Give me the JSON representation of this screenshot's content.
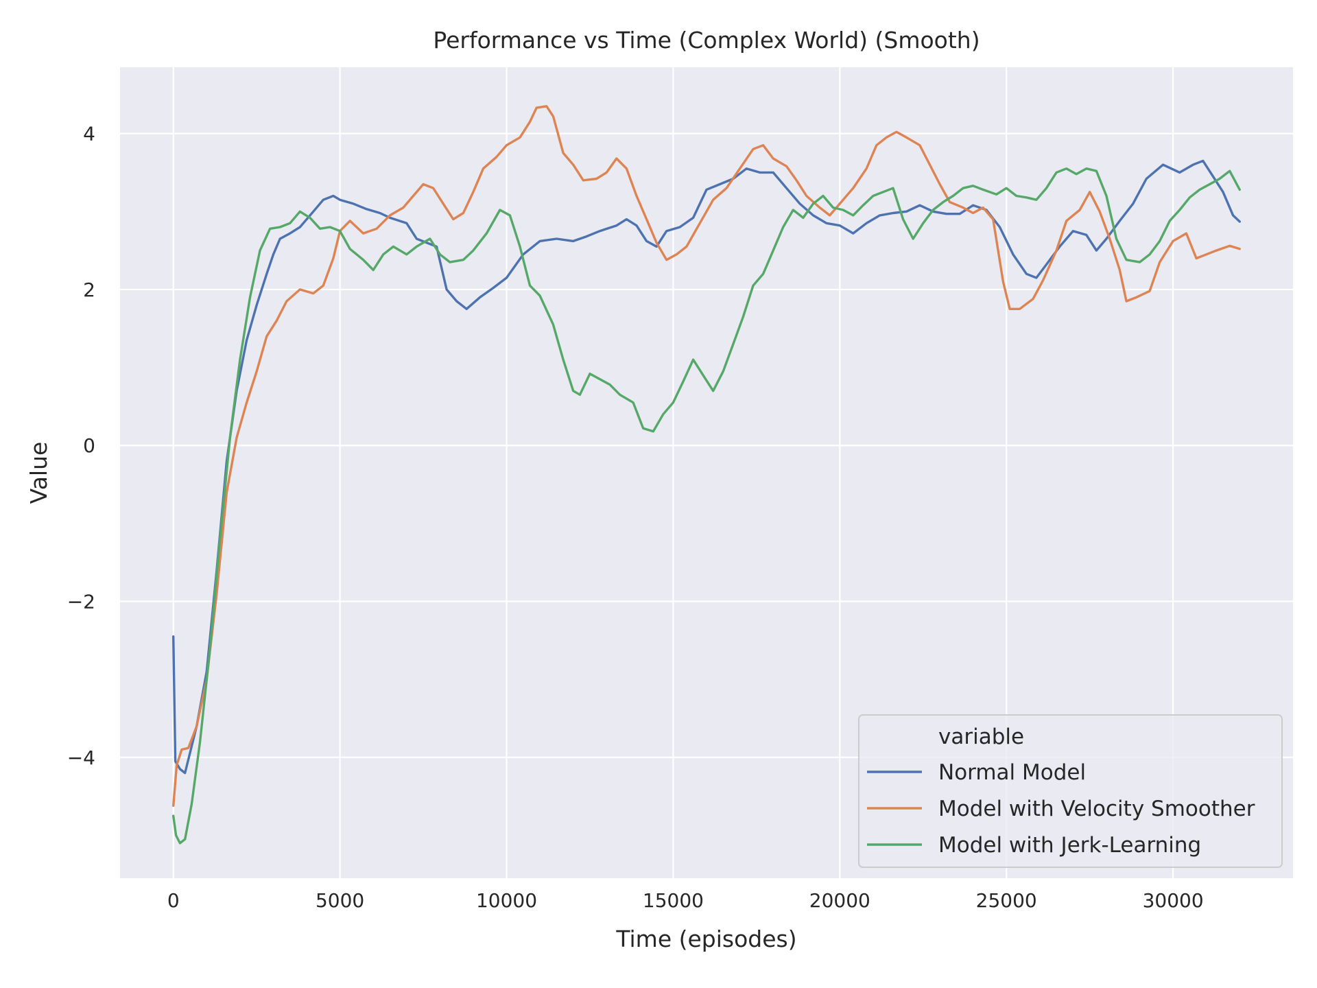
{
  "chart_data": {
    "type": "line",
    "title": "Performance vs Time (Complex World) (Smooth)",
    "xlabel": "Time (episodes)",
    "ylabel": "Value",
    "xlim": [
      -1600,
      33600
    ],
    "ylim": [
      -5.55,
      4.85
    ],
    "xticks": [
      0,
      5000,
      10000,
      15000,
      20000,
      25000,
      30000
    ],
    "yticks": [
      -4,
      -2,
      0,
      2,
      4
    ],
    "x_tick_labels": [
      "0",
      "5000",
      "10000",
      "15000",
      "20000",
      "25000",
      "30000"
    ],
    "y_tick_labels": [
      "−4",
      "−2",
      "0",
      "2",
      "4"
    ],
    "grid": true,
    "legend": {
      "title": "variable",
      "placement": "lower-right"
    },
    "series": [
      {
        "name": "Normal Model",
        "color": "#4c72b0",
        "points": [
          [
            0,
            -2.45
          ],
          [
            60,
            -4.05
          ],
          [
            200,
            -4.15
          ],
          [
            350,
            -4.2
          ],
          [
            700,
            -3.6
          ],
          [
            1000,
            -2.9
          ],
          [
            1300,
            -1.6
          ],
          [
            1600,
            -0.2
          ],
          [
            1900,
            0.7
          ],
          [
            2200,
            1.35
          ],
          [
            2500,
            1.8
          ],
          [
            2800,
            2.2
          ],
          [
            3000,
            2.45
          ],
          [
            3200,
            2.65
          ],
          [
            3500,
            2.72
          ],
          [
            3800,
            2.8
          ],
          [
            4200,
            3.0
          ],
          [
            4500,
            3.15
          ],
          [
            4800,
            3.2
          ],
          [
            5000,
            3.15
          ],
          [
            5400,
            3.1
          ],
          [
            5800,
            3.03
          ],
          [
            6200,
            2.98
          ],
          [
            6500,
            2.92
          ],
          [
            7000,
            2.85
          ],
          [
            7300,
            2.65
          ],
          [
            7600,
            2.6
          ],
          [
            7900,
            2.55
          ],
          [
            8200,
            2.0
          ],
          [
            8500,
            1.85
          ],
          [
            8800,
            1.75
          ],
          [
            9200,
            1.9
          ],
          [
            9600,
            2.02
          ],
          [
            10000,
            2.15
          ],
          [
            10500,
            2.45
          ],
          [
            11000,
            2.62
          ],
          [
            11500,
            2.65
          ],
          [
            12000,
            2.62
          ],
          [
            12400,
            2.68
          ],
          [
            12800,
            2.75
          ],
          [
            13300,
            2.82
          ],
          [
            13600,
            2.9
          ],
          [
            13900,
            2.82
          ],
          [
            14200,
            2.62
          ],
          [
            14500,
            2.55
          ],
          [
            14800,
            2.75
          ],
          [
            15200,
            2.8
          ],
          [
            15600,
            2.92
          ],
          [
            16000,
            3.28
          ],
          [
            16400,
            3.35
          ],
          [
            16800,
            3.42
          ],
          [
            17200,
            3.55
          ],
          [
            17600,
            3.5
          ],
          [
            18000,
            3.5
          ],
          [
            18400,
            3.3
          ],
          [
            18800,
            3.1
          ],
          [
            19200,
            2.95
          ],
          [
            19600,
            2.85
          ],
          [
            20000,
            2.82
          ],
          [
            20400,
            2.72
          ],
          [
            20800,
            2.85
          ],
          [
            21200,
            2.95
          ],
          [
            21600,
            2.98
          ],
          [
            22000,
            3.0
          ],
          [
            22400,
            3.08
          ],
          [
            22800,
            3.0
          ],
          [
            23200,
            2.97
          ],
          [
            23600,
            2.97
          ],
          [
            24000,
            3.08
          ],
          [
            24400,
            3.02
          ],
          [
            24800,
            2.8
          ],
          [
            25200,
            2.45
          ],
          [
            25600,
            2.2
          ],
          [
            25900,
            2.15
          ],
          [
            26200,
            2.32
          ],
          [
            26600,
            2.55
          ],
          [
            27000,
            2.75
          ],
          [
            27400,
            2.7
          ],
          [
            27700,
            2.5
          ],
          [
            28000,
            2.65
          ],
          [
            28400,
            2.88
          ],
          [
            28800,
            3.1
          ],
          [
            29200,
            3.42
          ],
          [
            29700,
            3.6
          ],
          [
            30200,
            3.5
          ],
          [
            30600,
            3.6
          ],
          [
            30900,
            3.65
          ],
          [
            31200,
            3.45
          ],
          [
            31500,
            3.25
          ],
          [
            31800,
            2.95
          ],
          [
            32000,
            2.87
          ]
        ]
      },
      {
        "name": "Model with Velocity Smoother",
        "color": "#dd8452",
        "points": [
          [
            0,
            -4.62
          ],
          [
            100,
            -4.1
          ],
          [
            250,
            -3.9
          ],
          [
            450,
            -3.88
          ],
          [
            700,
            -3.6
          ],
          [
            1000,
            -3.0
          ],
          [
            1300,
            -1.9
          ],
          [
            1600,
            -0.6
          ],
          [
            1900,
            0.1
          ],
          [
            2200,
            0.55
          ],
          [
            2500,
            0.95
          ],
          [
            2800,
            1.4
          ],
          [
            3100,
            1.6
          ],
          [
            3400,
            1.85
          ],
          [
            3800,
            2.0
          ],
          [
            4200,
            1.95
          ],
          [
            4500,
            2.05
          ],
          [
            4800,
            2.4
          ],
          [
            5000,
            2.75
          ],
          [
            5300,
            2.88
          ],
          [
            5700,
            2.72
          ],
          [
            6100,
            2.78
          ],
          [
            6500,
            2.95
          ],
          [
            6900,
            3.05
          ],
          [
            7200,
            3.2
          ],
          [
            7500,
            3.35
          ],
          [
            7800,
            3.3
          ],
          [
            8100,
            3.1
          ],
          [
            8400,
            2.9
          ],
          [
            8700,
            2.98
          ],
          [
            9000,
            3.25
          ],
          [
            9300,
            3.55
          ],
          [
            9700,
            3.7
          ],
          [
            10000,
            3.85
          ],
          [
            10400,
            3.95
          ],
          [
            10700,
            4.15
          ],
          [
            10900,
            4.33
          ],
          [
            11200,
            4.35
          ],
          [
            11400,
            4.22
          ],
          [
            11700,
            3.75
          ],
          [
            12000,
            3.6
          ],
          [
            12300,
            3.4
          ],
          [
            12700,
            3.42
          ],
          [
            13000,
            3.5
          ],
          [
            13300,
            3.68
          ],
          [
            13600,
            3.55
          ],
          [
            13900,
            3.2
          ],
          [
            14200,
            2.9
          ],
          [
            14500,
            2.6
          ],
          [
            14800,
            2.38
          ],
          [
            15100,
            2.45
          ],
          [
            15400,
            2.55
          ],
          [
            15800,
            2.85
          ],
          [
            16200,
            3.15
          ],
          [
            16600,
            3.3
          ],
          [
            17000,
            3.55
          ],
          [
            17400,
            3.8
          ],
          [
            17700,
            3.85
          ],
          [
            18000,
            3.68
          ],
          [
            18400,
            3.58
          ],
          [
            18700,
            3.4
          ],
          [
            19000,
            3.2
          ],
          [
            19400,
            3.05
          ],
          [
            19700,
            2.95
          ],
          [
            20000,
            3.1
          ],
          [
            20400,
            3.3
          ],
          [
            20800,
            3.55
          ],
          [
            21100,
            3.85
          ],
          [
            21400,
            3.95
          ],
          [
            21700,
            4.02
          ],
          [
            22000,
            3.95
          ],
          [
            22400,
            3.85
          ],
          [
            22700,
            3.6
          ],
          [
            23000,
            3.35
          ],
          [
            23300,
            3.12
          ],
          [
            23700,
            3.05
          ],
          [
            24000,
            2.98
          ],
          [
            24300,
            3.05
          ],
          [
            24600,
            2.9
          ],
          [
            24900,
            2.1
          ],
          [
            25100,
            1.75
          ],
          [
            25400,
            1.75
          ],
          [
            25800,
            1.88
          ],
          [
            26100,
            2.12
          ],
          [
            26500,
            2.5
          ],
          [
            26800,
            2.88
          ],
          [
            27200,
            3.02
          ],
          [
            27500,
            3.25
          ],
          [
            27800,
            3.0
          ],
          [
            28100,
            2.65
          ],
          [
            28400,
            2.25
          ],
          [
            28600,
            1.85
          ],
          [
            28900,
            1.9
          ],
          [
            29300,
            1.98
          ],
          [
            29600,
            2.35
          ],
          [
            30000,
            2.62
          ],
          [
            30400,
            2.72
          ],
          [
            30700,
            2.4
          ],
          [
            31000,
            2.45
          ],
          [
            31300,
            2.5
          ],
          [
            31700,
            2.56
          ],
          [
            32000,
            2.52
          ]
        ]
      },
      {
        "name": "Model with Jerk-Learning",
        "color": "#55a868",
        "points": [
          [
            0,
            -4.75
          ],
          [
            80,
            -5.0
          ],
          [
            200,
            -5.1
          ],
          [
            350,
            -5.05
          ],
          [
            550,
            -4.6
          ],
          [
            800,
            -3.8
          ],
          [
            1100,
            -2.6
          ],
          [
            1400,
            -1.2
          ],
          [
            1700,
            0.1
          ],
          [
            2000,
            1.1
          ],
          [
            2300,
            1.9
          ],
          [
            2600,
            2.5
          ],
          [
            2900,
            2.78
          ],
          [
            3200,
            2.8
          ],
          [
            3500,
            2.85
          ],
          [
            3800,
            3.0
          ],
          [
            4100,
            2.92
          ],
          [
            4400,
            2.78
          ],
          [
            4700,
            2.8
          ],
          [
            5000,
            2.75
          ],
          [
            5300,
            2.52
          ],
          [
            5700,
            2.38
          ],
          [
            6000,
            2.25
          ],
          [
            6300,
            2.45
          ],
          [
            6600,
            2.55
          ],
          [
            7000,
            2.45
          ],
          [
            7300,
            2.55
          ],
          [
            7700,
            2.65
          ],
          [
            8000,
            2.45
          ],
          [
            8300,
            2.35
          ],
          [
            8700,
            2.38
          ],
          [
            9000,
            2.5
          ],
          [
            9400,
            2.72
          ],
          [
            9800,
            3.02
          ],
          [
            10100,
            2.95
          ],
          [
            10400,
            2.55
          ],
          [
            10700,
            2.05
          ],
          [
            11000,
            1.92
          ],
          [
            11400,
            1.55
          ],
          [
            11700,
            1.1
          ],
          [
            12000,
            0.7
          ],
          [
            12200,
            0.65
          ],
          [
            12500,
            0.92
          ],
          [
            12800,
            0.85
          ],
          [
            13100,
            0.78
          ],
          [
            13400,
            0.65
          ],
          [
            13800,
            0.55
          ],
          [
            14100,
            0.22
          ],
          [
            14400,
            0.18
          ],
          [
            14700,
            0.4
          ],
          [
            15000,
            0.55
          ],
          [
            15300,
            0.82
          ],
          [
            15600,
            1.1
          ],
          [
            15900,
            0.9
          ],
          [
            16200,
            0.7
          ],
          [
            16500,
            0.95
          ],
          [
            16800,
            1.3
          ],
          [
            17100,
            1.65
          ],
          [
            17400,
            2.05
          ],
          [
            17700,
            2.2
          ],
          [
            18000,
            2.5
          ],
          [
            18300,
            2.8
          ],
          [
            18600,
            3.02
          ],
          [
            18900,
            2.92
          ],
          [
            19200,
            3.1
          ],
          [
            19500,
            3.2
          ],
          [
            19800,
            3.05
          ],
          [
            20100,
            3.02
          ],
          [
            20400,
            2.95
          ],
          [
            20700,
            3.08
          ],
          [
            21000,
            3.2
          ],
          [
            21300,
            3.25
          ],
          [
            21600,
            3.3
          ],
          [
            21900,
            2.9
          ],
          [
            22200,
            2.65
          ],
          [
            22500,
            2.85
          ],
          [
            22800,
            3.02
          ],
          [
            23100,
            3.12
          ],
          [
            23400,
            3.2
          ],
          [
            23700,
            3.3
          ],
          [
            24000,
            3.33
          ],
          [
            24300,
            3.28
          ],
          [
            24700,
            3.22
          ],
          [
            25000,
            3.3
          ],
          [
            25300,
            3.2
          ],
          [
            25600,
            3.18
          ],
          [
            25900,
            3.15
          ],
          [
            26200,
            3.3
          ],
          [
            26500,
            3.5
          ],
          [
            26800,
            3.55
          ],
          [
            27100,
            3.48
          ],
          [
            27400,
            3.55
          ],
          [
            27700,
            3.52
          ],
          [
            28000,
            3.2
          ],
          [
            28300,
            2.65
          ],
          [
            28600,
            2.38
          ],
          [
            29000,
            2.35
          ],
          [
            29300,
            2.45
          ],
          [
            29600,
            2.62
          ],
          [
            29900,
            2.88
          ],
          [
            30200,
            3.02
          ],
          [
            30500,
            3.18
          ],
          [
            30800,
            3.28
          ],
          [
            31100,
            3.35
          ],
          [
            31400,
            3.42
          ],
          [
            31700,
            3.52
          ],
          [
            32000,
            3.28
          ]
        ]
      }
    ]
  }
}
